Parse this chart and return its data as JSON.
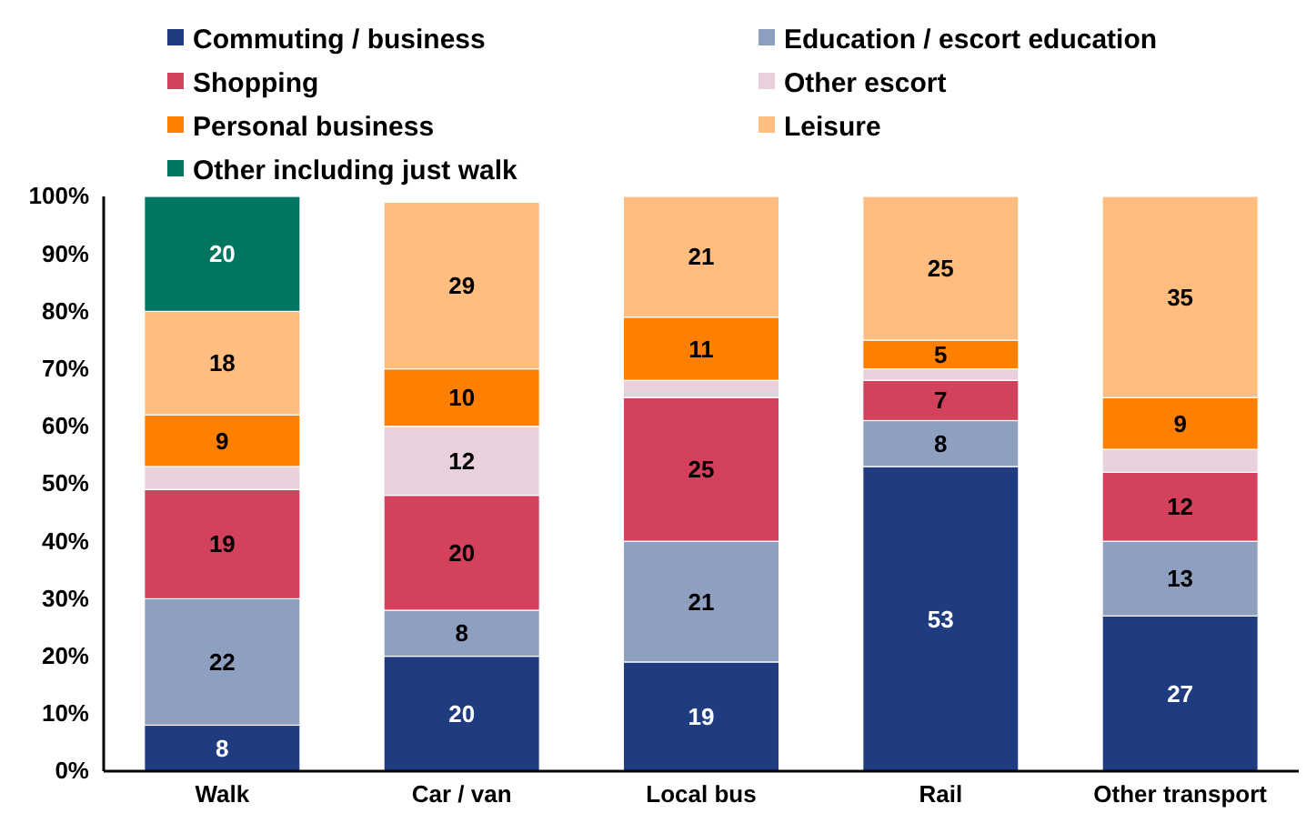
{
  "chart_data": {
    "type": "bar",
    "stacked": true,
    "categories": [
      "Walk",
      "Car / van",
      "Local bus",
      "Rail",
      "Other transport"
    ],
    "series": [
      {
        "name": "Commuting / business",
        "color": "#203c80",
        "values": [
          8,
          20,
          19,
          53,
          27
        ],
        "value_labels": [
          "8",
          "20",
          "19",
          "53",
          "27"
        ]
      },
      {
        "name": "Education / escort education",
        "color": "#8f9fbf",
        "values": [
          22,
          8,
          21,
          8,
          13
        ],
        "value_labels": [
          "22",
          "8",
          "21",
          "8",
          "13"
        ]
      },
      {
        "name": "Shopping",
        "color": "#d4415c",
        "values": [
          19,
          20,
          25,
          7,
          12
        ],
        "value_labels": [
          "19",
          "20",
          "25",
          "7",
          "12"
        ]
      },
      {
        "name": "Other escort",
        "color": "#e8d0dc",
        "values": [
          4,
          12,
          3,
          2,
          4
        ],
        "value_labels": [
          null,
          "12",
          null,
          null,
          null
        ]
      },
      {
        "name": "Personal business",
        "color": "#ff8000",
        "values": [
          9,
          10,
          11,
          5,
          9
        ],
        "value_labels": [
          "9",
          "10",
          "11",
          "5",
          "9"
        ]
      },
      {
        "name": "Leisure",
        "color": "#ffbd80",
        "values": [
          18,
          29,
          21,
          25,
          35
        ],
        "value_labels": [
          "18",
          "29",
          "21",
          "25",
          "35"
        ]
      },
      {
        "name": "Other including just walk",
        "color": "#007560",
        "values": [
          20,
          0,
          0,
          0,
          0
        ],
        "value_labels": [
          "20",
          null,
          null,
          null,
          null
        ]
      }
    ],
    "ylim": [
      0,
      100
    ],
    "yticks": [
      {
        "value": 0,
        "label": "0%"
      },
      {
        "value": 10,
        "label": "10%"
      },
      {
        "value": 20,
        "label": "20%"
      },
      {
        "value": 30,
        "label": "30%"
      },
      {
        "value": 40,
        "label": "40%"
      },
      {
        "value": 50,
        "label": "50%"
      },
      {
        "value": 60,
        "label": "60%"
      },
      {
        "value": 70,
        "label": "70%"
      },
      {
        "value": 80,
        "label": "80%"
      },
      {
        "value": 90,
        "label": "90%"
      },
      {
        "value": 100,
        "label": "100%"
      }
    ],
    "legend": "top",
    "grid": false
  }
}
